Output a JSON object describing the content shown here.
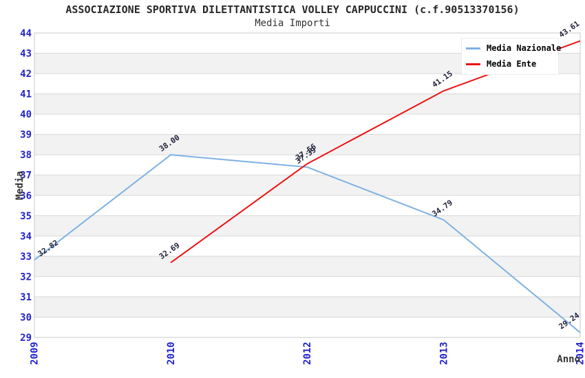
{
  "header": {
    "title": "ASSOCIAZIONE SPORTIVA DILETTANTISTICA VOLLEY CAPPUCCINI (c.f.90513370156)",
    "subtitle": "Media Importi"
  },
  "chart_data": {
    "type": "line",
    "title": "ASSOCIAZIONE SPORTIVA DILETTANTISTICA VOLLEY CAPPUCCINI (c.f.90513370156)",
    "subtitle": "Media Importi",
    "xlabel": "Anno",
    "ylabel": "Media",
    "categories": [
      "2009",
      "2010",
      "2012",
      "2013",
      "2014"
    ],
    "series": [
      {
        "name": "Media Nazionale",
        "color": "#7db1e3",
        "values": [
          32.82,
          38.0,
          37.39,
          34.79,
          29.24
        ]
      },
      {
        "name": "Media Ente",
        "color": "#ea1310",
        "values": [
          null,
          32.69,
          37.56,
          41.15,
          43.61
        ]
      }
    ],
    "ylim": [
      29,
      44
    ],
    "ytick_step": 1,
    "grid": "horizontal-bands",
    "legend_position": "top-right",
    "data_labels": "two-decimals-rotated"
  },
  "colors": {
    "tick_label": "#2222cc",
    "data_label": "#23233c",
    "axis_title": "#333333",
    "gridline": "#d8d8d8",
    "band": "#f2f2f2",
    "plot_border": "#c9c9c9",
    "background": "#ffffff"
  }
}
